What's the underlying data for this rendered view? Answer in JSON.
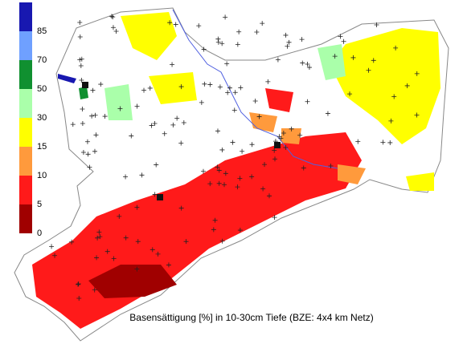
{
  "legend": {
    "labels": [
      "0",
      "5",
      "10",
      "15",
      "30",
      "50",
      "70",
      "85"
    ],
    "colors": [
      "#a00000",
      "#ff1a1a",
      "#ff9a3c",
      "#ffff00",
      "#aaffaa",
      "#109030",
      "#6fa0ff",
      "#1818b0"
    ]
  },
  "caption": "Basensättigung [%] in 10-30cm Tiefe (BZE: 4x4 km Netz)"
}
